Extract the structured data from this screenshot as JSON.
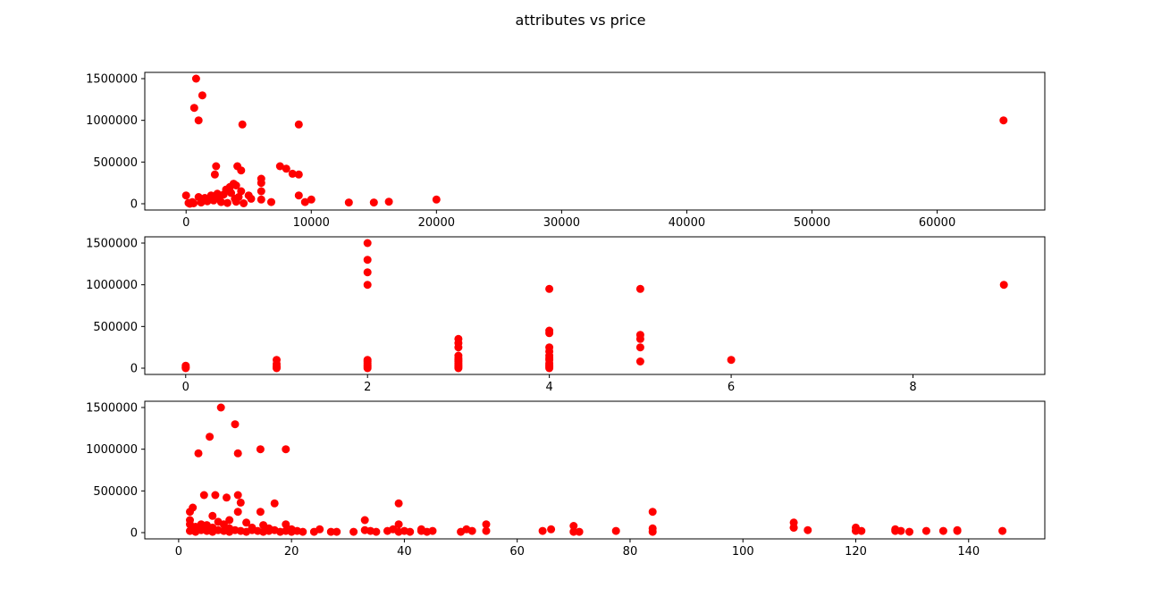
{
  "title": "attributes vs price",
  "marker_color": "#ff0000",
  "chart_data": [
    {
      "type": "scatter",
      "xlim": [
        -3300,
        68600
      ],
      "ylim": [
        -75000,
        1575000
      ],
      "xticks": [
        0,
        10000,
        20000,
        30000,
        40000,
        50000,
        60000
      ],
      "yticks": [
        0,
        500000,
        1000000,
        1500000
      ],
      "points": [
        [
          800,
          1500000
        ],
        [
          1300,
          1300000
        ],
        [
          650,
          1150000
        ],
        [
          1000,
          1000000
        ],
        [
          4500,
          950000
        ],
        [
          9000,
          950000
        ],
        [
          65300,
          1000000
        ],
        [
          2400,
          450000
        ],
        [
          4100,
          450000
        ],
        [
          7500,
          450000
        ],
        [
          8000,
          420000
        ],
        [
          4400,
          400000
        ],
        [
          8500,
          360000
        ],
        [
          9000,
          350000
        ],
        [
          2300,
          350000
        ],
        [
          6000,
          300000
        ],
        [
          6000,
          250000
        ],
        [
          3800,
          240000
        ],
        [
          4000,
          220000
        ],
        [
          3500,
          200000
        ],
        [
          4400,
          150000
        ],
        [
          6000,
          150000
        ],
        [
          3200,
          170000
        ],
        [
          2000,
          100000
        ],
        [
          2500,
          120000
        ],
        [
          3000,
          110000
        ],
        [
          5000,
          100000
        ],
        [
          9000,
          100000
        ],
        [
          0,
          100000
        ],
        [
          1000,
          80000
        ],
        [
          1500,
          70000
        ],
        [
          3600,
          130000
        ],
        [
          2700,
          90000
        ],
        [
          4200,
          80000
        ],
        [
          3900,
          60000
        ],
        [
          6000,
          50000
        ],
        [
          10000,
          50000
        ],
        [
          20000,
          50000
        ],
        [
          500,
          20000
        ],
        [
          200,
          10000
        ],
        [
          300,
          0
        ],
        [
          600,
          5000
        ],
        [
          1200,
          15000
        ],
        [
          1700,
          30000
        ],
        [
          2200,
          40000
        ],
        [
          2800,
          20000
        ],
        [
          3300,
          10000
        ],
        [
          4000,
          25000
        ],
        [
          4600,
          5000
        ],
        [
          5200,
          60000
        ],
        [
          6800,
          20000
        ],
        [
          9500,
          20000
        ],
        [
          13000,
          15000
        ],
        [
          15000,
          15000
        ],
        [
          16200,
          25000
        ],
        [
          1800,
          50000
        ],
        [
          2600,
          70000
        ]
      ]
    },
    {
      "type": "scatter",
      "xlim": [
        -0.45,
        9.45
      ],
      "ylim": [
        -75000,
        1575000
      ],
      "xticks": [
        0,
        2,
        4,
        6,
        8
      ],
      "yticks": [
        0,
        500000,
        1000000,
        1500000
      ],
      "points": [
        [
          0,
          30000
        ],
        [
          0,
          10000
        ],
        [
          0,
          0
        ],
        [
          1,
          100000
        ],
        [
          1,
          50000
        ],
        [
          1,
          20000
        ],
        [
          1,
          0
        ],
        [
          1,
          10000
        ],
        [
          2,
          1500000
        ],
        [
          2,
          1300000
        ],
        [
          2,
          1150000
        ],
        [
          2,
          1000000
        ],
        [
          2,
          100000
        ],
        [
          2,
          80000
        ],
        [
          2,
          60000
        ],
        [
          2,
          40000
        ],
        [
          2,
          20000
        ],
        [
          2,
          0
        ],
        [
          3,
          350000
        ],
        [
          3,
          300000
        ],
        [
          3,
          250000
        ],
        [
          3,
          150000
        ],
        [
          3,
          120000
        ],
        [
          3,
          100000
        ],
        [
          3,
          80000
        ],
        [
          3,
          60000
        ],
        [
          3,
          40000
        ],
        [
          3,
          20000
        ],
        [
          3,
          0
        ],
        [
          4,
          950000
        ],
        [
          4,
          450000
        ],
        [
          4,
          420000
        ],
        [
          4,
          250000
        ],
        [
          4,
          200000
        ],
        [
          4,
          150000
        ],
        [
          4,
          120000
        ],
        [
          4,
          100000
        ],
        [
          4,
          60000
        ],
        [
          4,
          40000
        ],
        [
          4,
          20000
        ],
        [
          4,
          0
        ],
        [
          5,
          950000
        ],
        [
          5,
          400000
        ],
        [
          5,
          350000
        ],
        [
          5,
          250000
        ],
        [
          5,
          80000
        ],
        [
          6,
          100000
        ],
        [
          9,
          1000000
        ]
      ]
    },
    {
      "type": "scatter",
      "xlim": [
        -6,
        153.5
      ],
      "ylim": [
        -75000,
        1575000
      ],
      "xticks": [
        0,
        20,
        40,
        60,
        80,
        100,
        120,
        140
      ],
      "yticks": [
        0,
        500000,
        1000000,
        1500000
      ],
      "points": [
        [
          7.5,
          1500000
        ],
        [
          10,
          1300000
        ],
        [
          5.5,
          1150000
        ],
        [
          14.5,
          1000000
        ],
        [
          19,
          1000000
        ],
        [
          3.5,
          950000
        ],
        [
          10.5,
          950000
        ],
        [
          4.5,
          450000
        ],
        [
          6.5,
          450000
        ],
        [
          10.5,
          450000
        ],
        [
          8.5,
          420000
        ],
        [
          11,
          360000
        ],
        [
          17,
          350000
        ],
        [
          39,
          350000
        ],
        [
          2.5,
          300000
        ],
        [
          2,
          250000
        ],
        [
          10.5,
          250000
        ],
        [
          14.5,
          250000
        ],
        [
          84,
          250000
        ],
        [
          6,
          200000
        ],
        [
          2,
          150000
        ],
        [
          33,
          150000
        ],
        [
          9,
          150000
        ],
        [
          7,
          130000
        ],
        [
          109,
          120000
        ],
        [
          12,
          120000
        ],
        [
          2,
          100000
        ],
        [
          4,
          100000
        ],
        [
          5,
          90000
        ],
        [
          8,
          100000
        ],
        [
          15,
          90000
        ],
        [
          19,
          100000
        ],
        [
          39,
          100000
        ],
        [
          54.5,
          100000
        ],
        [
          70,
          80000
        ],
        [
          109,
          60000
        ],
        [
          120,
          60000
        ],
        [
          3,
          70000
        ],
        [
          6,
          60000
        ],
        [
          9,
          50000
        ],
        [
          13,
          60000
        ],
        [
          16,
          50000
        ],
        [
          20,
          40000
        ],
        [
          25,
          40000
        ],
        [
          33,
          30000
        ],
        [
          38,
          40000
        ],
        [
          43,
          40000
        ],
        [
          51,
          40000
        ],
        [
          66,
          40000
        ],
        [
          84,
          50000
        ],
        [
          127,
          40000
        ],
        [
          138,
          30000
        ],
        [
          2,
          20000
        ],
        [
          3,
          10000
        ],
        [
          4,
          30000
        ],
        [
          5,
          20000
        ],
        [
          6,
          10000
        ],
        [
          7,
          30000
        ],
        [
          8,
          20000
        ],
        [
          9,
          10000
        ],
        [
          10,
          30000
        ],
        [
          11,
          20000
        ],
        [
          12,
          10000
        ],
        [
          13,
          30000
        ],
        [
          14,
          20000
        ],
        [
          15,
          10000
        ],
        [
          16,
          20000
        ],
        [
          17,
          30000
        ],
        [
          18,
          10000
        ],
        [
          19,
          20000
        ],
        [
          20,
          10000
        ],
        [
          21,
          20000
        ],
        [
          22,
          10000
        ],
        [
          24,
          10000
        ],
        [
          27,
          10000
        ],
        [
          28,
          10000
        ],
        [
          31,
          10000
        ],
        [
          34,
          20000
        ],
        [
          35,
          10000
        ],
        [
          37,
          20000
        ],
        [
          39,
          10000
        ],
        [
          40,
          20000
        ],
        [
          41,
          10000
        ],
        [
          43,
          20000
        ],
        [
          44,
          10000
        ],
        [
          45,
          20000
        ],
        [
          50,
          10000
        ],
        [
          52,
          20000
        ],
        [
          54.5,
          20000
        ],
        [
          64.5,
          20000
        ],
        [
          70,
          10000
        ],
        [
          71,
          10000
        ],
        [
          77.5,
          20000
        ],
        [
          84,
          10000
        ],
        [
          109,
          60000
        ],
        [
          111.5,
          30000
        ],
        [
          120,
          20000
        ],
        [
          121,
          20000
        ],
        [
          127,
          20000
        ],
        [
          128,
          20000
        ],
        [
          129.5,
          10000
        ],
        [
          132.5,
          20000
        ],
        [
          135.5,
          20000
        ],
        [
          138,
          20000
        ],
        [
          146,
          20000
        ]
      ]
    }
  ]
}
